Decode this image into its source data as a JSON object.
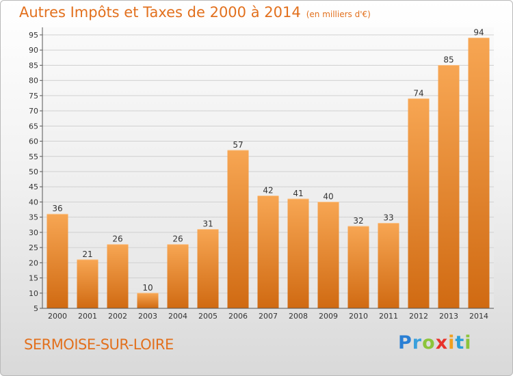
{
  "title": "Autres Impôts et Taxes de 2000 à 2014",
  "unit": "(en milliers d'€)",
  "location": "SERMOISE-SUR-LOIRE",
  "brand": {
    "letters": [
      "P",
      "r",
      "o",
      "x",
      "i",
      "t",
      "i"
    ],
    "colors": [
      "#2a7fd4",
      "#3aa0dc",
      "#8cc43a",
      "#e8322b",
      "#f0a020",
      "#2a9fd8",
      "#8cc43a"
    ]
  },
  "colors": {
    "accent": "#e2701d",
    "bar_light": "#f7a653",
    "bar_dark": "#d06a12"
  },
  "chart_data": {
    "type": "bar",
    "categories": [
      "2000",
      "2001",
      "2002",
      "2003",
      "2004",
      "2005",
      "2006",
      "2007",
      "2008",
      "2009",
      "2010",
      "2011",
      "2012",
      "2013",
      "2014"
    ],
    "values": [
      36,
      21,
      26,
      10,
      26,
      31,
      57,
      42,
      41,
      40,
      32,
      33,
      74,
      85,
      94
    ],
    "title": "Autres Impôts et Taxes de 2000 à 2014",
    "ylim": [
      5,
      95
    ],
    "yticks": [
      5,
      10,
      15,
      20,
      25,
      30,
      35,
      40,
      45,
      50,
      55,
      60,
      65,
      70,
      75,
      80,
      85,
      90,
      95
    ],
    "grid": true,
    "data_labels": true
  }
}
